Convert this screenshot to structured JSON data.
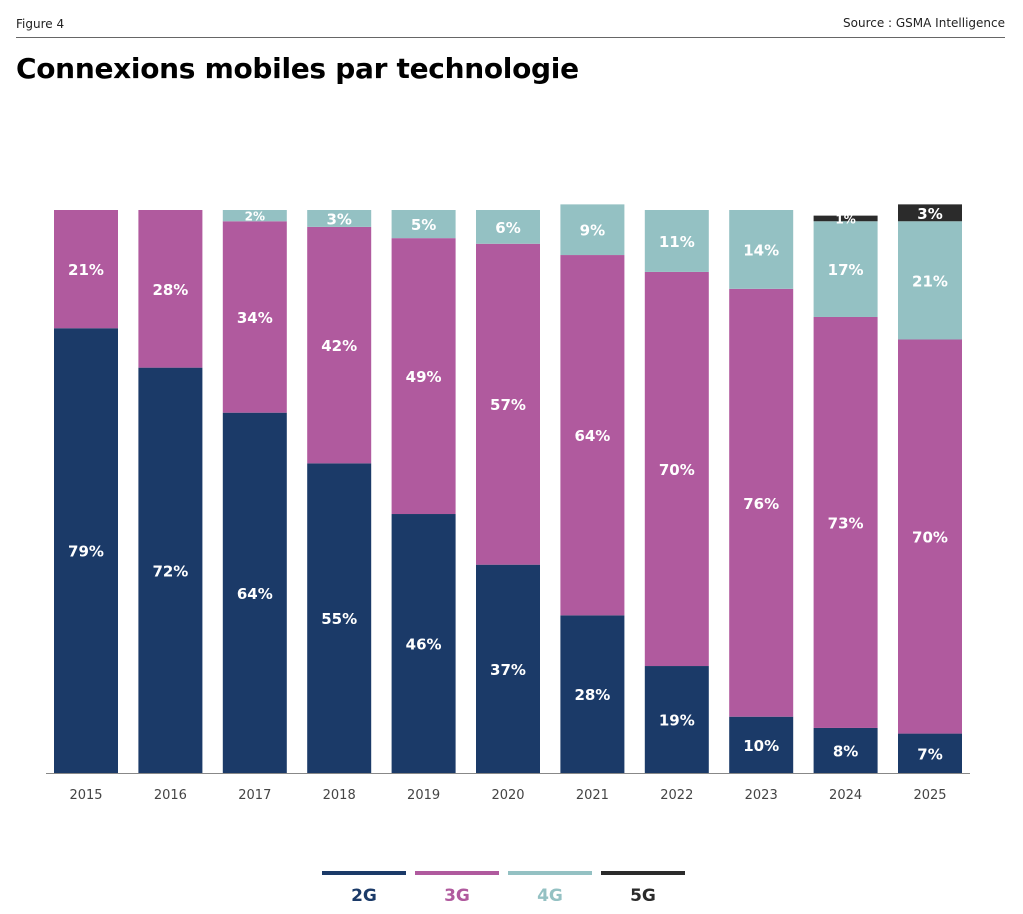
{
  "header": {
    "figure_label": "Figure 4",
    "source": "Source : GSMA Intelligence",
    "title": "Connexions mobiles par technologie"
  },
  "colors": {
    "2G": "#1b3a68",
    "3G": "#b05a9e",
    "4G": "#94c1c3",
    "5G": "#2b2b2b"
  },
  "chart_data": {
    "type": "bar",
    "stacked": true,
    "categories": [
      "2015",
      "2016",
      "2017",
      "2018",
      "2019",
      "2020",
      "2021",
      "2022",
      "2023",
      "2024",
      "2025"
    ],
    "series": [
      {
        "name": "2G",
        "values": [
          79,
          72,
          64,
          55,
          46,
          37,
          28,
          19,
          10,
          8,
          7
        ],
        "labels": [
          "79%",
          "72%",
          "64%",
          "55%",
          "46%",
          "37%",
          "28%",
          "19%",
          "10%",
          "8%",
          "7%"
        ]
      },
      {
        "name": "3G",
        "values": [
          21,
          28,
          34,
          42,
          49,
          57,
          64,
          70,
          76,
          73,
          70
        ],
        "labels": [
          "21%",
          "28%",
          "34%",
          "42%",
          "49%",
          "57%",
          "64%",
          "70%",
          "76%",
          "73%",
          "70%"
        ]
      },
      {
        "name": "4G",
        "values": [
          0,
          0,
          2,
          3,
          5,
          6,
          9,
          11,
          14,
          17,
          21
        ],
        "labels": [
          "",
          "",
          "2%",
          "3%",
          "5%",
          "6%",
          "9%",
          "11%",
          "14%",
          "17%",
          "21%"
        ]
      },
      {
        "name": "5G",
        "values": [
          0,
          0,
          0,
          0,
          0,
          0,
          0,
          0,
          0,
          1,
          3
        ],
        "labels": [
          "",
          "",
          "",
          "",
          "",
          "",
          "",
          "",
          "",
          "1%",
          "3%"
        ]
      }
    ],
    "ylim": [
      0,
      100
    ],
    "legend_position": "bottom",
    "grid": false
  }
}
